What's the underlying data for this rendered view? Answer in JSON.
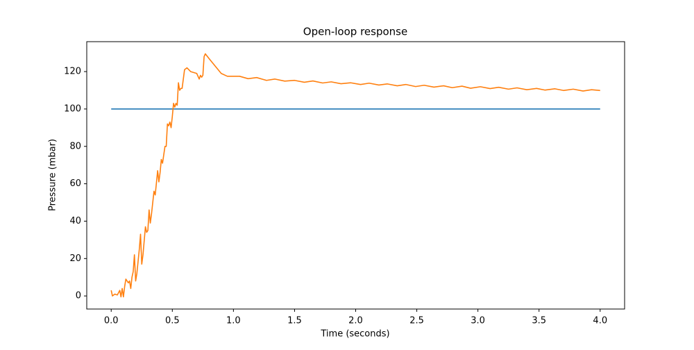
{
  "chart_data": {
    "type": "line",
    "title": "Open-loop response",
    "x_label": "Time (seconds)",
    "y_label": "Pressure (mbar)",
    "xlim": [
      -0.2,
      4.2
    ],
    "ylim": [
      -7,
      136
    ],
    "xticks": [
      {
        "value": 0,
        "label": "0.0"
      },
      {
        "value": 0.5,
        "label": "0.5"
      },
      {
        "value": 1,
        "label": "1.0"
      },
      {
        "value": 1.5,
        "label": "1.5"
      },
      {
        "value": 2,
        "label": "2.0"
      },
      {
        "value": 2.5,
        "label": "2.5"
      },
      {
        "value": 3,
        "label": "3.0"
      },
      {
        "value": 3.5,
        "label": "3.5"
      },
      {
        "value": 4,
        "label": "4.0"
      }
    ],
    "yticks": [
      0,
      20,
      40,
      60,
      80,
      100,
      120
    ],
    "grid": false,
    "series": [
      {
        "color": "#1f77b4",
        "x": [
          0,
          4
        ],
        "values": [
          100,
          100
        ]
      },
      {
        "color": "#ff7f0e",
        "x": [
          0,
          0.01,
          0.03,
          0.05,
          0.07,
          0.08,
          0.09,
          0.1,
          0.11,
          0.12,
          0.14,
          0.15,
          0.16,
          0.17,
          0.18,
          0.19,
          0.2,
          0.21,
          0.23,
          0.24,
          0.25,
          0.26,
          0.28,
          0.29,
          0.3,
          0.31,
          0.32,
          0.33,
          0.35,
          0.36,
          0.38,
          0.39,
          0.4,
          0.41,
          0.42,
          0.44,
          0.45,
          0.46,
          0.47,
          0.48,
          0.49,
          0.5,
          0.51,
          0.52,
          0.53,
          0.54,
          0.55,
          0.56,
          0.57,
          0.58,
          0.6,
          0.62,
          0.65,
          0.7,
          0.72,
          0.73,
          0.74,
          0.75,
          0.76,
          0.77,
          0.8,
          0.85,
          0.9,
          0.95,
          1.0,
          1.05,
          1.12,
          1.19,
          1.27,
          1.34,
          1.42,
          1.5,
          1.58,
          1.65,
          1.73,
          1.8,
          1.88,
          1.96,
          2.04,
          2.11,
          2.19,
          2.26,
          2.34,
          2.41,
          2.49,
          2.56,
          2.64,
          2.72,
          2.79,
          2.87,
          2.94,
          3.02,
          3.1,
          3.17,
          3.25,
          3.32,
          3.4,
          3.48,
          3.55,
          3.63,
          3.7,
          3.78,
          3.86,
          3.93,
          4.0
        ],
        "values": [
          3,
          0,
          1,
          0.5,
          3,
          -0.5,
          4,
          -0.5,
          5,
          9,
          7,
          8,
          4,
          10,
          13,
          22,
          8,
          12,
          25,
          33,
          17,
          22,
          37,
          34,
          35,
          46,
          39,
          44,
          56,
          54,
          67,
          61,
          66,
          73,
          71,
          80,
          80,
          92,
          91,
          93,
          90,
          96,
          103,
          101,
          103,
          102,
          114,
          110,
          111,
          111,
          121,
          122,
          120,
          119,
          116,
          118,
          117,
          118,
          128,
          129.5,
          127,
          123,
          119,
          117.5,
          117.5,
          117.5,
          116.2,
          116.8,
          115.3,
          116,
          114.9,
          115.3,
          114.3,
          115,
          113.9,
          114.5,
          113.5,
          114,
          113.1,
          113.8,
          112.8,
          113.4,
          112.4,
          113.1,
          112,
          112.7,
          111.7,
          112.4,
          111.4,
          112.2,
          111.1,
          111.9,
          110.9,
          111.6,
          110.6,
          111.3,
          110.3,
          111,
          110.1,
          110.8,
          109.9,
          110.6,
          109.6,
          110.3,
          109.9
        ]
      }
    ]
  }
}
